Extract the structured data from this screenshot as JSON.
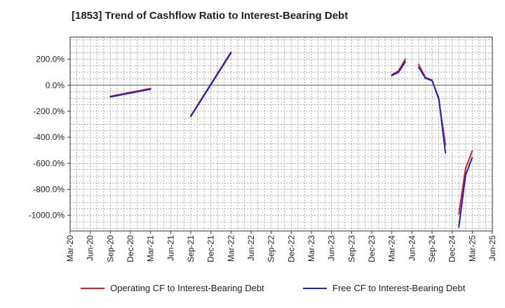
{
  "title": "[1853]  Trend of Cashflow Ratio to Interest-Bearing Debt",
  "colors": {
    "operating": "#e31a1c",
    "free": "#1f1fcc",
    "grid": "#999999",
    "zero_line": "#555555"
  },
  "chart_data": {
    "type": "line",
    "title": "[1853]  Trend of Cashflow Ratio to Interest-Bearing Debt",
    "xlabel": "",
    "ylabel": "",
    "ylim": [
      -1120,
      370
    ],
    "yticks": [
      200,
      0,
      -200,
      -400,
      -600,
      -800,
      -1000
    ],
    "ytick_labels": [
      "200.0%",
      "0.0%",
      "-200.0%",
      "-400.0%",
      "-600.0%",
      "-800.0%",
      "-1000.0%"
    ],
    "xticks": [
      "Mar-20",
      "Jun-20",
      "Sep-20",
      "Dec-20",
      "Mar-21",
      "Jun-21",
      "Sep-21",
      "Dec-21",
      "Mar-22",
      "Jun-22",
      "Sep-22",
      "Dec-22",
      "Mar-23",
      "Jun-23",
      "Sep-23",
      "Dec-23",
      "Mar-24",
      "Jun-24",
      "Sep-24",
      "Dec-24",
      "Mar-25",
      "Jun-25"
    ],
    "grid": true,
    "legend_position": "bottom",
    "series": [
      {
        "name": "Operating CF to Interest-Bearing Debt",
        "color": "#e31a1c",
        "segments": [
          [
            [
              "Sep-20",
              -85
            ],
            [
              "Dec-20",
              -55
            ],
            [
              "Mar-21",
              -25
            ]
          ],
          [
            [
              "Sep-21",
              -235
            ],
            [
              "Dec-21",
              10
            ],
            [
              "Mar-22",
              255
            ]
          ],
          [
            [
              "Mar-24",
              80
            ],
            [
              "Apr-24",
              110
            ],
            [
              "May-24",
              200
            ]
          ],
          [
            [
              "Jul-24",
              160
            ],
            [
              "Aug-24",
              60
            ],
            [
              "Sep-24",
              40
            ],
            [
              "Oct-24",
              -110
            ],
            [
              "Nov-24",
              -460
            ]
          ],
          [
            [
              "Jan-25",
              -990
            ],
            [
              "Feb-25",
              -640
            ],
            [
              "Mar-25",
              -505
            ]
          ]
        ]
      },
      {
        "name": "Free CF to Interest-Bearing Debt",
        "color": "#1f1fcc",
        "segments": [
          [
            [
              "Sep-20",
              -90
            ],
            [
              "Dec-20",
              -60
            ],
            [
              "Mar-21",
              -30
            ]
          ],
          [
            [
              "Sep-21",
              -240
            ],
            [
              "Dec-21",
              5
            ],
            [
              "Mar-22",
              248
            ]
          ],
          [
            [
              "Mar-24",
              75
            ],
            [
              "Apr-24",
              100
            ],
            [
              "May-24",
              180
            ]
          ],
          [
            [
              "Jul-24",
              140
            ],
            [
              "Aug-24",
              55
            ],
            [
              "Sep-24",
              35
            ],
            [
              "Oct-24",
              -100
            ],
            [
              "Nov-24",
              -520
            ]
          ],
          [
            [
              "Jan-25",
              -1090
            ],
            [
              "Feb-25",
              -690
            ],
            [
              "Mar-25",
              -555
            ]
          ]
        ]
      }
    ]
  }
}
